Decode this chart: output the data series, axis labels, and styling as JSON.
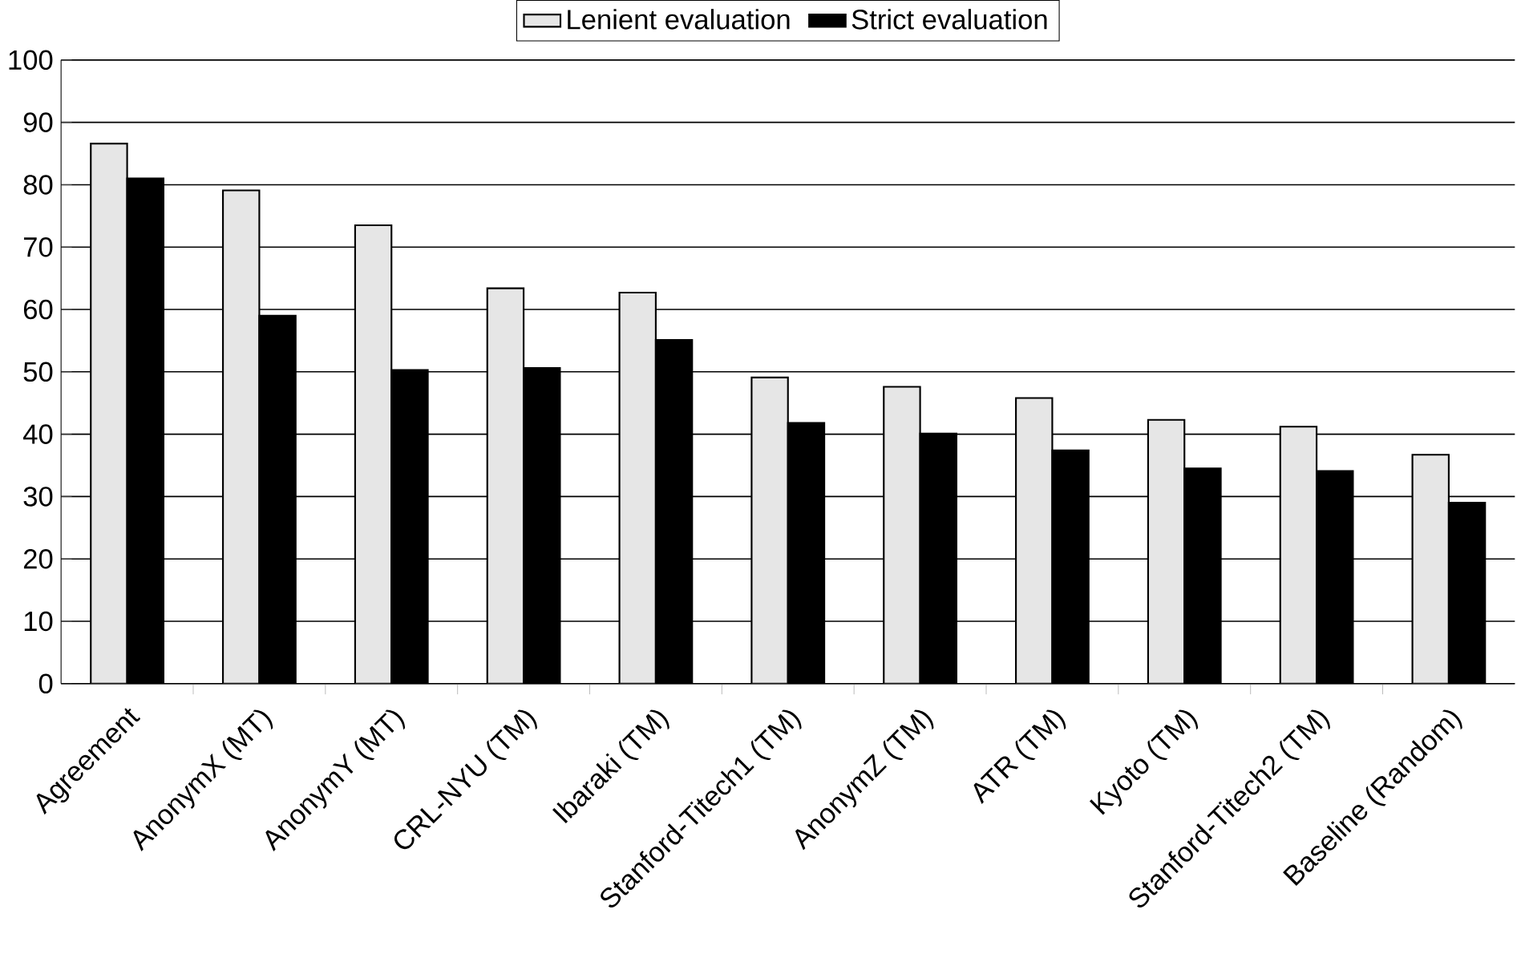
{
  "chart_data": {
    "type": "bar",
    "categories": [
      "Agreement",
      "AnonymX (MT)",
      "AnonymY (MT)",
      "CRL-NYU (TM)",
      "Ibaraki (TM)",
      "Stanford-Titech1 (TM)",
      "AnonymZ (TM)",
      "ATR (TM)",
      "Kyoto (TM)",
      "Stanford-Titech2 (TM)",
      "Baseline (Random)"
    ],
    "series": [
      {
        "name": "Lenient evaluation",
        "color": "#e6e6e6",
        "values": [
          86.6,
          79.1,
          73.5,
          63.4,
          62.7,
          49.1,
          47.6,
          45.8,
          42.3,
          41.2,
          36.7
        ]
      },
      {
        "name": "Strict evaluation",
        "color": "#000000",
        "values": [
          81.0,
          59.0,
          50.3,
          50.6,
          55.1,
          41.8,
          40.1,
          37.4,
          34.5,
          34.1,
          29.0
        ]
      }
    ],
    "ylim": [
      0,
      100
    ],
    "yticks": [
      0,
      10,
      20,
      30,
      40,
      50,
      60,
      70,
      80,
      90,
      100
    ],
    "grid": "y",
    "legend": "top"
  }
}
